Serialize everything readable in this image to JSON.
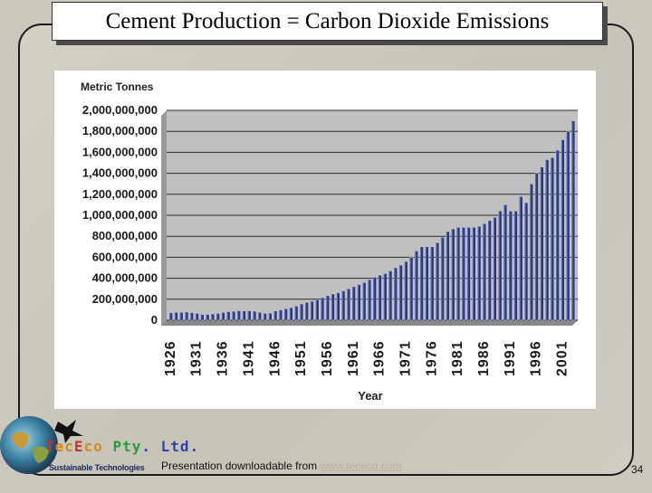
{
  "slide": {
    "title": "Cement Production = Carbon Dioxide Emissions",
    "footer_text": "Presentation downloadable from ",
    "footer_link": "www.tececo.com",
    "page_number": "34"
  },
  "logo": {
    "brand_text": "TecEco Pty. Ltd.",
    "tagline": "Sustainable Technologies",
    "icon": "globe-with-bird-icon"
  },
  "chart_data": {
    "type": "bar",
    "title": "",
    "ylabel": "Metric Tonnes",
    "xlabel": "Year",
    "ylim": [
      0,
      2000000000
    ],
    "yticks": [
      0,
      200000000,
      400000000,
      600000000,
      800000000,
      1000000000,
      1200000000,
      1400000000,
      1600000000,
      1800000000,
      2000000000
    ],
    "ytick_labels": [
      "0",
      "200,000,000",
      "400,000,000",
      "600,000,000",
      "800,000,000",
      "1,000,000,000",
      "1,200,000,000",
      "1,400,000,000",
      "1,600,000,000",
      "1,800,000,000",
      "2,000,000,000"
    ],
    "xtick_labels": [
      "1926",
      "1931",
      "1936",
      "1941",
      "1946",
      "1951",
      "1956",
      "1961",
      "1966",
      "1971",
      "1976",
      "1981",
      "1986",
      "1991",
      "1996",
      "2001"
    ],
    "grid": true,
    "bar_color": "#2a3575",
    "categories": [
      "1926",
      "1927",
      "1928",
      "1929",
      "1930",
      "1931",
      "1932",
      "1933",
      "1934",
      "1935",
      "1936",
      "1937",
      "1938",
      "1939",
      "1940",
      "1941",
      "1942",
      "1943",
      "1944",
      "1945",
      "1946",
      "1947",
      "1948",
      "1949",
      "1950",
      "1951",
      "1952",
      "1953",
      "1954",
      "1955",
      "1956",
      "1957",
      "1958",
      "1959",
      "1960",
      "1961",
      "1962",
      "1963",
      "1964",
      "1965",
      "1966",
      "1967",
      "1968",
      "1969",
      "1970",
      "1971",
      "1972",
      "1973",
      "1974",
      "1975",
      "1976",
      "1977",
      "1978",
      "1979",
      "1980",
      "1981",
      "1982",
      "1983",
      "1984",
      "1985",
      "1986",
      "1987",
      "1988",
      "1989",
      "1990",
      "1991",
      "1992",
      "1993",
      "1994",
      "1995",
      "1996",
      "1997",
      "1998",
      "1999",
      "2000",
      "2001",
      "2002",
      "2003"
    ],
    "values": [
      70000000,
      75000000,
      75000000,
      78000000,
      72000000,
      65000000,
      55000000,
      55000000,
      60000000,
      65000000,
      75000000,
      82000000,
      85000000,
      90000000,
      88000000,
      90000000,
      85000000,
      75000000,
      65000000,
      68000000,
      88000000,
      98000000,
      110000000,
      120000000,
      135000000,
      155000000,
      170000000,
      180000000,
      195000000,
      215000000,
      235000000,
      250000000,
      262000000,
      280000000,
      300000000,
      320000000,
      340000000,
      360000000,
      385000000,
      410000000,
      430000000,
      445000000,
      470000000,
      500000000,
      525000000,
      560000000,
      600000000,
      660000000,
      700000000,
      700000000,
      700000000,
      740000000,
      790000000,
      845000000,
      870000000,
      885000000,
      885000000,
      885000000,
      885000000,
      895000000,
      920000000,
      950000000,
      980000000,
      1040000000,
      1100000000,
      1040000000,
      1040000000,
      1180000000,
      1120000000,
      1300000000,
      1400000000,
      1460000000,
      1530000000,
      1550000000,
      1620000000,
      1720000000,
      1800000000,
      1900000000
    ]
  }
}
